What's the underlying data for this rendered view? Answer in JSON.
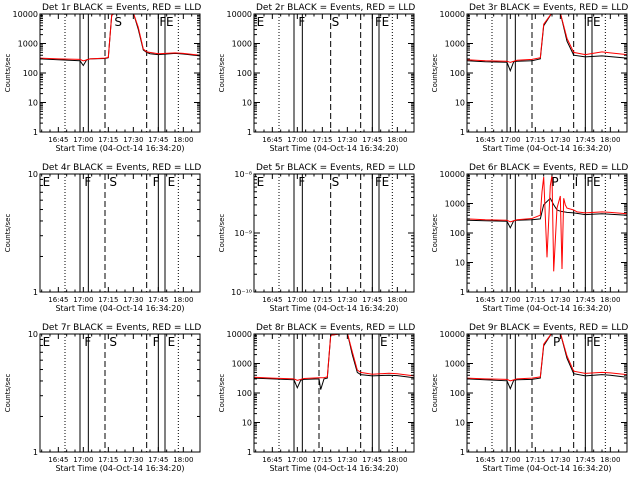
{
  "xlabel": "Start Time (04-Oct-14 16:34:20)",
  "ylabel": "Counts/sec",
  "time_ticks": [
    "16:45",
    "17:00",
    "17:15",
    "17:30",
    "17:45",
    "18:00"
  ],
  "colors": {
    "events": "#000000",
    "lld": "#ff0000",
    "axes": "#000000"
  },
  "chart_data": [
    {
      "type": "line",
      "title": "Det 1r BLACK = Events, RED = LLD",
      "ylabel": "Counts/sec",
      "xlim": [
        "16:34",
        "18:10"
      ],
      "ylim": [
        1,
        10000
      ],
      "yscale": "log",
      "yticks": [
        "1",
        "10",
        "100",
        "1000",
        "10000"
      ],
      "vlines": [
        {
          "time": "16:49",
          "style": "dotted"
        },
        {
          "time": "16:58",
          "style": "solid"
        },
        {
          "time": "17:03",
          "style": "solid"
        },
        {
          "time": "17:13",
          "style": "dashed"
        },
        {
          "time": "17:38",
          "style": "dashed"
        },
        {
          "time": "17:45",
          "style": "solid"
        },
        {
          "time": "17:49",
          "style": "solid"
        },
        {
          "time": "17:57",
          "style": "dotted"
        }
      ],
      "region_labels": [
        {
          "label": "S",
          "time": "17:18"
        },
        {
          "label": "F",
          "time": "17:45"
        },
        {
          "label": "E",
          "time": "17:49"
        }
      ],
      "series": [
        {
          "x": [
            "16:34",
            "16:45",
            "16:58",
            "17:00",
            "17:02",
            "17:04",
            "17:13",
            "17:15",
            "17:17",
            "17:19",
            "17:30",
            "17:33",
            "17:36",
            "17:38",
            "17:40",
            "17:45",
            "17:55",
            "18:00",
            "18:10"
          ],
          "y": [
            300,
            280,
            260,
            180,
            280,
            300,
            310,
            330,
            9000,
            11000,
            11000,
            3000,
            600,
            500,
            450,
            420,
            460,
            440,
            380
          ]
        },
        {
          "x": [
            "16:34",
            "16:45",
            "16:58",
            "17:00",
            "17:04",
            "17:13",
            "17:15",
            "17:17",
            "17:19",
            "17:30",
            "17:33",
            "17:36",
            "17:38",
            "17:45",
            "17:55",
            "18:00",
            "18:10"
          ],
          "y": [
            320,
            300,
            290,
            260,
            300,
            320,
            340,
            9000,
            11000,
            11000,
            3500,
            650,
            520,
            450,
            480,
            460,
            400
          ]
        }
      ]
    },
    {
      "type": "line",
      "title": "Det 2r BLACK = Events, RED = LLD",
      "ylabel": "Counts/sec",
      "xlim": [
        "16:34",
        "18:10"
      ],
      "ylim": [
        1,
        10000
      ],
      "yscale": "log",
      "yticks": [
        "1",
        "10",
        "100",
        "1000",
        "10000"
      ],
      "vlines": [
        {
          "time": "16:49",
          "style": "dotted"
        },
        {
          "time": "16:58",
          "style": "solid"
        },
        {
          "time": "17:03",
          "style": "solid"
        },
        {
          "time": "17:20",
          "style": "dashed"
        },
        {
          "time": "17:38",
          "style": "dashed"
        },
        {
          "time": "17:45",
          "style": "solid"
        },
        {
          "time": "17:49",
          "style": "solid"
        },
        {
          "time": "17:57",
          "style": "dotted"
        }
      ],
      "region_labels": [
        {
          "label": "E",
          "time": "16:35"
        },
        {
          "label": "F",
          "time": "17:00"
        },
        {
          "label": "S",
          "time": "17:20"
        },
        {
          "label": "F",
          "time": "17:46"
        },
        {
          "label": "E",
          "time": "17:50"
        }
      ],
      "series": []
    },
    {
      "type": "line",
      "title": "Det 3r BLACK = Events, RED = LLD",
      "ylabel": "Counts/sec",
      "xlim": [
        "16:34",
        "18:10"
      ],
      "ylim": [
        1,
        10000
      ],
      "yscale": "log",
      "yticks": [
        "1",
        "10",
        "100",
        "1000",
        "10000"
      ],
      "vlines": [
        {
          "time": "16:49",
          "style": "dotted"
        },
        {
          "time": "16:58",
          "style": "solid"
        },
        {
          "time": "17:03",
          "style": "solid"
        },
        {
          "time": "17:13",
          "style": "dashed"
        },
        {
          "time": "17:38",
          "style": "dashed"
        },
        {
          "time": "17:45",
          "style": "solid"
        },
        {
          "time": "17:49",
          "style": "solid"
        },
        {
          "time": "17:57",
          "style": "dotted"
        }
      ],
      "region_labels": [
        {
          "label": "F",
          "time": "17:45"
        },
        {
          "label": "E",
          "time": "17:49"
        }
      ],
      "series": [
        {
          "x": [
            "16:34",
            "16:45",
            "16:58",
            "17:00",
            "17:02",
            "17:04",
            "17:13",
            "17:18",
            "17:20",
            "17:25",
            "17:30",
            "17:34",
            "17:38",
            "17:45",
            "17:55",
            "18:00",
            "18:10"
          ],
          "y": [
            260,
            240,
            230,
            120,
            240,
            250,
            260,
            300,
            4000,
            11000,
            11000,
            1200,
            400,
            350,
            380,
            360,
            320
          ]
        },
        {
          "x": [
            "16:34",
            "16:45",
            "16:58",
            "17:00",
            "17:04",
            "17:13",
            "17:18",
            "17:20",
            "17:25",
            "17:30",
            "17:34",
            "17:38",
            "17:45",
            "17:55",
            "18:00",
            "18:10"
          ],
          "y": [
            280,
            260,
            250,
            230,
            270,
            290,
            330,
            4500,
            11000,
            11000,
            1500,
            500,
            420,
            520,
            480,
            420
          ]
        }
      ]
    },
    {
      "type": "line",
      "title": "Det 4r BLACK = Events, RED = LLD",
      "ylabel": "Counts/sec",
      "xlim": [
        "16:34",
        "18:10"
      ],
      "ylim": [
        1,
        10
      ],
      "yscale": "log",
      "yticks": [
        "1",
        "10"
      ],
      "vlines": [
        {
          "time": "16:49",
          "style": "dotted"
        },
        {
          "time": "16:58",
          "style": "solid"
        },
        {
          "time": "17:03",
          "style": "solid"
        },
        {
          "time": "17:13",
          "style": "dashed"
        },
        {
          "time": "17:38",
          "style": "dashed"
        },
        {
          "time": "17:45",
          "style": "solid"
        },
        {
          "time": "17:49",
          "style": "solid"
        },
        {
          "time": "17:57",
          "style": "dotted"
        }
      ],
      "region_labels": [
        {
          "label": "E",
          "time": "16:35"
        },
        {
          "label": "F",
          "time": "17:00"
        },
        {
          "label": "S",
          "time": "17:15"
        },
        {
          "label": "F",
          "time": "17:41"
        },
        {
          "label": "E",
          "time": "17:50"
        }
      ],
      "series": []
    },
    {
      "type": "line",
      "title": "Det 5r BLACK = Events, RED = LLD",
      "ylabel": "Counts/sec",
      "xlim": [
        "16:34",
        "18:10"
      ],
      "ylim": [
        1e-10,
        1e-08
      ],
      "yscale": "log",
      "yticks": [
        "10⁻¹⁰",
        "10⁻⁹",
        "10⁻⁸"
      ],
      "vlines": [
        {
          "time": "16:49",
          "style": "dotted"
        },
        {
          "time": "16:58",
          "style": "solid"
        },
        {
          "time": "17:03",
          "style": "solid"
        },
        {
          "time": "17:20",
          "style": "dashed"
        },
        {
          "time": "17:38",
          "style": "dashed"
        },
        {
          "time": "17:45",
          "style": "solid"
        },
        {
          "time": "17:49",
          "style": "solid"
        },
        {
          "time": "17:57",
          "style": "dotted"
        }
      ],
      "region_labels": [
        {
          "label": "E",
          "time": "16:35"
        },
        {
          "label": "F",
          "time": "17:00"
        },
        {
          "label": "S",
          "time": "17:20"
        },
        {
          "label": "F",
          "time": "17:46"
        },
        {
          "label": "E",
          "time": "17:50"
        }
      ],
      "series": []
    },
    {
      "type": "line",
      "title": "Det 6r BLACK = Events, RED = LLD",
      "ylabel": "Counts/sec",
      "xlim": [
        "16:34",
        "18:10"
      ],
      "ylim": [
        1,
        10000
      ],
      "yscale": "log",
      "yticks": [
        "1",
        "10",
        "100",
        "1000",
        "10000"
      ],
      "vlines": [
        {
          "time": "16:49",
          "style": "dotted"
        },
        {
          "time": "16:58",
          "style": "solid"
        },
        {
          "time": "17:03",
          "style": "solid"
        },
        {
          "time": "17:13",
          "style": "dashed"
        },
        {
          "time": "17:38",
          "style": "dashed"
        },
        {
          "time": "17:45",
          "style": "solid"
        },
        {
          "time": "17:49",
          "style": "solid"
        },
        {
          "time": "17:57",
          "style": "dotted"
        }
      ],
      "region_labels": [
        {
          "label": "P",
          "time": "17:24"
        },
        {
          "label": "I",
          "time": "17:38"
        },
        {
          "label": "F",
          "time": "17:45"
        },
        {
          "label": "E",
          "time": "17:49"
        }
      ],
      "series": [
        {
          "x": [
            "16:34",
            "16:45",
            "16:58",
            "17:00",
            "17:02",
            "17:04",
            "17:13",
            "17:18",
            "17:20",
            "17:24",
            "17:26",
            "17:28",
            "17:30",
            "17:34",
            "17:38",
            "17:45",
            "17:55",
            "18:00",
            "18:10"
          ],
          "y": [
            270,
            260,
            250,
            150,
            260,
            270,
            280,
            300,
            900,
            1500,
            900,
            600,
            550,
            500,
            480,
            420,
            450,
            430,
            400
          ]
        },
        {
          "x": [
            "16:34",
            "16:45",
            "16:58",
            "17:00",
            "17:04",
            "17:13",
            "17:18",
            "17:19",
            "17:20",
            "17:22",
            "17:24",
            "17:25",
            "17:26",
            "17:28",
            "17:30",
            "17:31",
            "17:32",
            "17:33",
            "17:34",
            "17:38",
            "17:40",
            "17:45",
            "17:55",
            "18:00",
            "18:10"
          ],
          "y": [
            300,
            280,
            270,
            240,
            280,
            310,
            400,
            2500,
            8000,
            15,
            4000,
            9000,
            5,
            700,
            1800,
            6,
            1500,
            900,
            700,
            600,
            520,
            480,
            520,
            500,
            450
          ]
        }
      ]
    },
    {
      "type": "line",
      "title": "Det 7r BLACK = Events, RED = LLD",
      "ylabel": "Counts/sec",
      "xlim": [
        "16:34",
        "18:10"
      ],
      "ylim": [
        1,
        10
      ],
      "yscale": "log",
      "yticks": [
        "1",
        "10"
      ],
      "vlines": [
        {
          "time": "16:49",
          "style": "dotted"
        },
        {
          "time": "16:58",
          "style": "solid"
        },
        {
          "time": "17:03",
          "style": "solid"
        },
        {
          "time": "17:13",
          "style": "dashed"
        },
        {
          "time": "17:38",
          "style": "dashed"
        },
        {
          "time": "17:45",
          "style": "solid"
        },
        {
          "time": "17:49",
          "style": "solid"
        },
        {
          "time": "17:57",
          "style": "dotted"
        }
      ],
      "region_labels": [
        {
          "label": "E",
          "time": "16:35"
        },
        {
          "label": "F",
          "time": "17:00"
        },
        {
          "label": "S",
          "time": "17:15"
        },
        {
          "label": "F",
          "time": "17:41"
        },
        {
          "label": "E",
          "time": "17:50"
        }
      ],
      "series": []
    },
    {
      "type": "line",
      "title": "Det 8r BLACK = Events, RED = LLD",
      "ylabel": "Counts/sec",
      "xlim": [
        "16:34",
        "18:10"
      ],
      "ylim": [
        1,
        10000
      ],
      "yscale": "log",
      "yticks": [
        "1",
        "10",
        "100",
        "1000",
        "10000"
      ],
      "vlines": [
        {
          "time": "16:49",
          "style": "dotted"
        },
        {
          "time": "16:58",
          "style": "solid"
        },
        {
          "time": "17:03",
          "style": "solid"
        },
        {
          "time": "17:13",
          "style": "dashed"
        },
        {
          "time": "17:38",
          "style": "dashed"
        },
        {
          "time": "17:45",
          "style": "solid"
        },
        {
          "time": "17:49",
          "style": "solid"
        },
        {
          "time": "17:57",
          "style": "dotted"
        }
      ],
      "region_labels": [
        {
          "label": "E",
          "time": "17:49"
        }
      ],
      "series": [
        {
          "x": [
            "16:34",
            "16:45",
            "16:58",
            "17:00",
            "17:02",
            "17:04",
            "17:13",
            "17:14",
            "17:16",
            "17:18",
            "17:20",
            "17:30",
            "17:33",
            "17:36",
            "17:38",
            "17:45",
            "17:55",
            "18:00",
            "18:10"
          ],
          "y": [
            320,
            300,
            280,
            150,
            270,
            290,
            300,
            130,
            300,
            320,
            9000,
            11000,
            2000,
            500,
            420,
            380,
            400,
            390,
            330
          ]
        },
        {
          "x": [
            "16:34",
            "16:45",
            "16:58",
            "17:00",
            "17:04",
            "17:13",
            "17:16",
            "17:18",
            "17:20",
            "17:30",
            "17:33",
            "17:36",
            "17:38",
            "17:45",
            "17:55",
            "18:00",
            "18:10"
          ],
          "y": [
            340,
            320,
            300,
            270,
            310,
            330,
            330,
            350,
            9000,
            11000,
            2500,
            600,
            500,
            430,
            470,
            450,
            380
          ]
        }
      ]
    },
    {
      "type": "line",
      "title": "Det 9r BLACK = Events, RED = LLD",
      "ylabel": "Counts/sec",
      "xlim": [
        "16:34",
        "18:10"
      ],
      "ylim": [
        1,
        10000
      ],
      "yscale": "log",
      "yticks": [
        "1",
        "10",
        "100",
        "1000",
        "10000"
      ],
      "vlines": [
        {
          "time": "16:49",
          "style": "dotted"
        },
        {
          "time": "16:58",
          "style": "solid"
        },
        {
          "time": "17:03",
          "style": "solid"
        },
        {
          "time": "17:13",
          "style": "dashed"
        },
        {
          "time": "17:38",
          "style": "dashed"
        },
        {
          "time": "17:45",
          "style": "solid"
        },
        {
          "time": "17:49",
          "style": "solid"
        },
        {
          "time": "17:57",
          "style": "dotted"
        }
      ],
      "region_labels": [
        {
          "label": "P",
          "time": "17:25"
        },
        {
          "label": "F",
          "time": "17:45"
        },
        {
          "label": "E",
          "time": "17:49"
        }
      ],
      "series": [
        {
          "x": [
            "16:34",
            "16:45",
            "16:58",
            "17:00",
            "17:02",
            "17:04",
            "17:13",
            "17:18",
            "17:20",
            "17:25",
            "17:30",
            "17:34",
            "17:38",
            "17:45",
            "17:55",
            "18:00",
            "18:10"
          ],
          "y": [
            300,
            280,
            260,
            140,
            270,
            280,
            290,
            320,
            4000,
            11000,
            11000,
            1500,
            450,
            380,
            420,
            400,
            340
          ]
        },
        {
          "x": [
            "16:34",
            "16:45",
            "16:58",
            "17:00",
            "17:04",
            "17:13",
            "17:18",
            "17:20",
            "17:25",
            "17:30",
            "17:34",
            "17:38",
            "17:45",
            "17:55",
            "18:00",
            "18:10"
          ],
          "y": [
            320,
            300,
            290,
            260,
            300,
            320,
            350,
            4500,
            11000,
            11000,
            1800,
            550,
            460,
            500,
            480,
            420
          ]
        }
      ]
    }
  ]
}
